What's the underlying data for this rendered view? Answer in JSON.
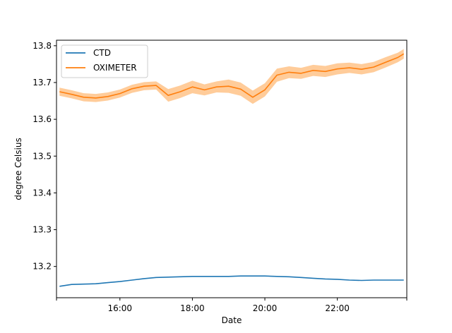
{
  "chart_data": {
    "type": "line",
    "title": "",
    "xlabel": "Date",
    "ylabel": "degree Celsius",
    "x_ticks": [
      "",
      "16:00",
      "18:00",
      "20:00",
      "22:00",
      ""
    ],
    "x_tick_values": [
      "14:15",
      "16:00",
      "18:00",
      "20:00",
      "22:00",
      "23:55"
    ],
    "xlim": [
      "14:15",
      "23:55"
    ],
    "ylim": [
      13.115,
      13.815
    ],
    "y_ticks": [
      "13.2",
      "13.3",
      "13.4",
      "13.5",
      "13.6",
      "13.7",
      "13.8"
    ],
    "y_tick_values": [
      13.2,
      13.3,
      13.4,
      13.5,
      13.6,
      13.7,
      13.8
    ],
    "grid": false,
    "legend_position": "top-left",
    "x": [
      "14:20",
      "14:40",
      "15:00",
      "15:20",
      "15:40",
      "16:00",
      "16:20",
      "16:40",
      "17:00",
      "17:20",
      "17:40",
      "18:00",
      "18:20",
      "18:40",
      "19:00",
      "19:20",
      "19:40",
      "20:00",
      "20:20",
      "20:40",
      "21:00",
      "21:20",
      "21:40",
      "22:00",
      "22:20",
      "22:40",
      "23:00",
      "23:20",
      "23:40",
      "23:50"
    ],
    "series": [
      {
        "name": "CTD",
        "color": "#1f77b4",
        "values": [
          13.146,
          13.151,
          13.152,
          13.153,
          13.156,
          13.159,
          13.163,
          13.167,
          13.17,
          13.171,
          13.172,
          13.173,
          13.173,
          13.173,
          13.173,
          13.174,
          13.174,
          13.174,
          13.173,
          13.172,
          13.17,
          13.168,
          13.166,
          13.165,
          13.163,
          13.162,
          13.163,
          13.163,
          13.163,
          13.163
        ]
      },
      {
        "name": "OXIMETER",
        "color": "#ff7f0e",
        "band_color": "#ffbb78",
        "values": [
          13.675,
          13.668,
          13.66,
          13.658,
          13.662,
          13.67,
          13.683,
          13.69,
          13.692,
          13.665,
          13.675,
          13.688,
          13.68,
          13.688,
          13.69,
          13.682,
          13.66,
          13.68,
          13.72,
          13.728,
          13.725,
          13.733,
          13.73,
          13.737,
          13.74,
          13.736,
          13.742,
          13.755,
          13.768,
          13.778
        ],
        "band_lower": [
          13.664,
          13.657,
          13.649,
          13.647,
          13.651,
          13.659,
          13.672,
          13.679,
          13.681,
          13.648,
          13.658,
          13.671,
          13.665,
          13.673,
          13.672,
          13.664,
          13.642,
          13.662,
          13.702,
          13.712,
          13.71,
          13.718,
          13.715,
          13.722,
          13.726,
          13.722,
          13.728,
          13.741,
          13.755,
          13.765
        ],
        "band_upper": [
          13.686,
          13.679,
          13.671,
          13.669,
          13.673,
          13.681,
          13.694,
          13.701,
          13.703,
          13.682,
          13.692,
          13.705,
          13.695,
          13.703,
          13.708,
          13.7,
          13.678,
          13.698,
          13.738,
          13.744,
          13.74,
          13.748,
          13.745,
          13.752,
          13.754,
          13.75,
          13.756,
          13.769,
          13.781,
          13.791
        ]
      }
    ]
  }
}
